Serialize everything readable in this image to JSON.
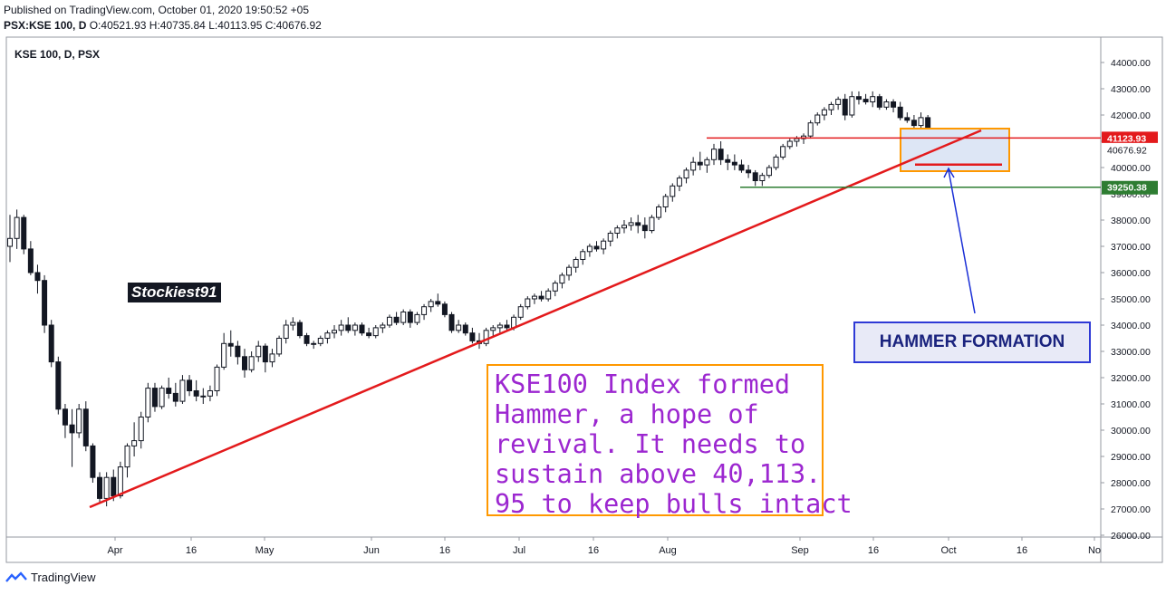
{
  "header": {
    "published": "Published on TradingView.com, October 01, 2020 19:50:52 +05",
    "symbol": "PSX:KSE 100, D",
    "o_label": "O:",
    "o_value": "40521.93",
    "h_label": "H:",
    "h_value": "40735.84",
    "l_label": "L:",
    "l_value": "40113.95",
    "c_label": "C:",
    "c_value": "40676.92"
  },
  "pane_title": "KSE 100, D, PSX",
  "footer_brand": "TradingView",
  "watermark": "Stockiest91",
  "hammer_label": "HAMMER FORMATION",
  "note_lines": [
    "KSE100 Index formed",
    "Hammer, a hope of",
    "revival. It needs to",
    "sustain above 40,113.",
    "95 to keep bulls intact"
  ],
  "colors": {
    "trendline": "#e31a1c",
    "resistance": "#e31a1c",
    "support": "#2e7d32",
    "box": "#ff9800",
    "arrow": "#1a2fd6",
    "last_price_tag": "#131722"
  },
  "chart_data": {
    "type": "candlestick",
    "ylim": [
      26000,
      44000
    ],
    "y_ticks": [
      "26000.00",
      "27000.00",
      "28000.00",
      "29000.00",
      "30000.00",
      "31000.00",
      "32000.00",
      "33000.00",
      "34000.00",
      "35000.00",
      "36000.00",
      "37000.00",
      "38000.00",
      "39000.00",
      "40000.00",
      "41000.00",
      "42000.00",
      "43000.00",
      "44000.00"
    ],
    "x_ticks": [
      "Apr",
      "16",
      "May",
      "Jun",
      "16",
      "Jul",
      "16",
      "Aug",
      "Sep",
      "16",
      "Oct",
      "16",
      "No"
    ],
    "price_tags": [
      {
        "label": "41123.93",
        "value": 41123.93,
        "color": "#e31a1c"
      },
      {
        "label": "40676.92",
        "value": 40676.92,
        "color": "#ffffff"
      },
      {
        "label": "39250.38",
        "value": 39250.38,
        "color": "#2e7d32"
      }
    ],
    "last_ohlc": {
      "open": 40521.93,
      "high": 40735.84,
      "low": 40113.95,
      "close": 40676.92
    },
    "candles": [
      [
        37000,
        38200,
        36400,
        37300
      ],
      [
        37300,
        38400,
        36900,
        38100
      ],
      [
        38100,
        38200,
        36700,
        36900
      ],
      [
        36900,
        37200,
        35900,
        36000
      ],
      [
        36000,
        36300,
        35200,
        35700
      ],
      [
        35700,
        35900,
        33700,
        34000
      ],
      [
        34000,
        34200,
        32400,
        32600
      ],
      [
        32600,
        32800,
        30600,
        30800
      ],
      [
        30800,
        31000,
        29700,
        30200
      ],
      [
        30200,
        30800,
        28600,
        29900
      ],
      [
        29900,
        31000,
        29700,
        30800
      ],
      [
        30800,
        31100,
        29200,
        29400
      ],
      [
        29400,
        29500,
        28000,
        28200
      ],
      [
        28200,
        28400,
        27200,
        27400
      ],
      [
        27400,
        28400,
        27100,
        28200
      ],
      [
        28200,
        28500,
        27300,
        27500
      ],
      [
        27500,
        28800,
        27400,
        28600
      ],
      [
        28600,
        29500,
        28200,
        29400
      ],
      [
        29400,
        30300,
        29000,
        29600
      ],
      [
        29600,
        30700,
        29300,
        30500
      ],
      [
        30500,
        31800,
        30300,
        31600
      ],
      [
        31600,
        31800,
        30700,
        30900
      ],
      [
        30900,
        31700,
        30800,
        31600
      ],
      [
        31600,
        32000,
        31200,
        31400
      ],
      [
        31400,
        31800,
        30900,
        31100
      ],
      [
        31100,
        32100,
        31000,
        31900
      ],
      [
        31900,
        32100,
        31300,
        31500
      ],
      [
        31500,
        31900,
        31100,
        31300
      ],
      [
        31300,
        31600,
        31000,
        31300
      ],
      [
        31300,
        31700,
        31100,
        31500
      ],
      [
        31500,
        32500,
        31300,
        32400
      ],
      [
        32400,
        33700,
        32300,
        33300
      ],
      [
        33300,
        33800,
        32800,
        33200
      ],
      [
        33200,
        33400,
        32500,
        32800
      ],
      [
        32800,
        33100,
        32000,
        32300
      ],
      [
        32300,
        33000,
        32200,
        32800
      ],
      [
        32800,
        33400,
        32600,
        33200
      ],
      [
        33200,
        33300,
        32200,
        32600
      ],
      [
        32600,
        33100,
        32400,
        32900
      ],
      [
        32900,
        33600,
        32800,
        33500
      ],
      [
        33500,
        34200,
        33300,
        34000
      ],
      [
        34000,
        34300,
        33800,
        34100
      ],
      [
        34100,
        34200,
        33500,
        33600
      ],
      [
        33600,
        33700,
        33200,
        33300
      ],
      [
        33300,
        33400,
        33100,
        33300
      ],
      [
        33300,
        33600,
        33200,
        33500
      ],
      [
        33500,
        33800,
        33300,
        33700
      ],
      [
        33700,
        34000,
        33500,
        33800
      ],
      [
        33800,
        34200,
        33600,
        34000
      ],
      [
        34000,
        34300,
        33700,
        33800
      ],
      [
        33800,
        34100,
        33600,
        34000
      ],
      [
        34000,
        34100,
        33600,
        33700
      ],
      [
        33700,
        33900,
        33500,
        33600
      ],
      [
        33600,
        34000,
        33500,
        33900
      ],
      [
        33900,
        34100,
        33700,
        34000
      ],
      [
        34000,
        34400,
        33900,
        34300
      ],
      [
        34300,
        34500,
        34000,
        34100
      ],
      [
        34100,
        34600,
        34000,
        34500
      ],
      [
        34500,
        34600,
        33900,
        34100
      ],
      [
        34100,
        34500,
        34000,
        34400
      ],
      [
        34400,
        34800,
        34200,
        34700
      ],
      [
        34700,
        35000,
        34500,
        34900
      ],
      [
        34900,
        35200,
        34700,
        34800
      ],
      [
        34800,
        34900,
        34300,
        34400
      ],
      [
        34400,
        34500,
        33700,
        33800
      ],
      [
        33800,
        34200,
        33700,
        34000
      ],
      [
        34000,
        34100,
        33600,
        33700
      ],
      [
        33700,
        33900,
        33300,
        33400
      ],
      [
        33400,
        33700,
        33100,
        33300
      ],
      [
        33300,
        33900,
        33200,
        33800
      ],
      [
        33800,
        34000,
        33600,
        33900
      ],
      [
        33900,
        34100,
        33700,
        34000
      ],
      [
        34000,
        34200,
        33800,
        33900
      ],
      [
        33900,
        34400,
        33800,
        34300
      ],
      [
        34300,
        34800,
        34200,
        34700
      ],
      [
        34700,
        35100,
        34600,
        35000
      ],
      [
        35000,
        35200,
        34800,
        35100
      ],
      [
        35100,
        35300,
        34900,
        35000
      ],
      [
        35000,
        35400,
        34900,
        35300
      ],
      [
        35300,
        35700,
        35100,
        35600
      ],
      [
        35600,
        36000,
        35400,
        35900
      ],
      [
        35900,
        36300,
        35700,
        36200
      ],
      [
        36200,
        36600,
        36000,
        36500
      ],
      [
        36500,
        36900,
        36300,
        36800
      ],
      [
        36800,
        37100,
        36600,
        37000
      ],
      [
        37000,
        37200,
        36800,
        36900
      ],
      [
        36900,
        37300,
        36700,
        37200
      ],
      [
        37200,
        37600,
        37000,
        37500
      ],
      [
        37500,
        37800,
        37300,
        37700
      ],
      [
        37700,
        38000,
        37500,
        37800
      ],
      [
        37800,
        38100,
        37600,
        37900
      ],
      [
        37900,
        38200,
        37500,
        37800
      ],
      [
        37800,
        38100,
        37300,
        37600
      ],
      [
        37600,
        38200,
        37500,
        38100
      ],
      [
        38100,
        38600,
        38000,
        38500
      ],
      [
        38500,
        39000,
        38300,
        38900
      ],
      [
        38900,
        39400,
        38700,
        39300
      ],
      [
        39300,
        39700,
        39100,
        39600
      ],
      [
        39600,
        40000,
        39400,
        39900
      ],
      [
        39900,
        40400,
        39700,
        40200
      ],
      [
        40200,
        40600,
        39900,
        40100
      ],
      [
        40100,
        40400,
        39800,
        40300
      ],
      [
        40300,
        40900,
        40100,
        40700
      ],
      [
        40700,
        41000,
        40100,
        40300
      ],
      [
        40300,
        40500,
        39900,
        40200
      ],
      [
        40200,
        40500,
        39900,
        40100
      ],
      [
        40100,
        40300,
        39800,
        39900
      ],
      [
        39900,
        40100,
        39600,
        39800
      ],
      [
        39800,
        39900,
        39300,
        39500
      ],
      [
        39500,
        39800,
        39300,
        39700
      ],
      [
        39700,
        40100,
        39600,
        40000
      ],
      [
        40000,
        40500,
        39900,
        40400
      ],
      [
        40400,
        40900,
        40300,
        40800
      ],
      [
        40800,
        41100,
        40700,
        41000
      ],
      [
        41000,
        41200,
        40800,
        41100
      ],
      [
        41100,
        41300,
        40900,
        41200
      ],
      [
        41200,
        41800,
        41100,
        41700
      ],
      [
        41700,
        42100,
        41600,
        42000
      ],
      [
        42000,
        42300,
        41800,
        42200
      ],
      [
        42200,
        42500,
        42000,
        42400
      ],
      [
        42400,
        42700,
        42200,
        42600
      ],
      [
        42600,
        42800,
        41800,
        42000
      ],
      [
        42000,
        42900,
        41900,
        42700
      ],
      [
        42700,
        42900,
        42400,
        42600
      ],
      [
        42600,
        42800,
        42400,
        42500
      ],
      [
        42500,
        42900,
        42300,
        42700
      ],
      [
        42700,
        42800,
        42200,
        42300
      ],
      [
        42300,
        42600,
        42200,
        42500
      ],
      [
        42500,
        42600,
        42100,
        42300
      ],
      [
        42300,
        42500,
        41800,
        41900
      ],
      [
        41900,
        42100,
        41700,
        41800
      ],
      [
        41800,
        42000,
        41500,
        41600
      ],
      [
        41600,
        42100,
        41500,
        41900
      ],
      [
        41900,
        42000,
        40700,
        40800
      ],
      [
        40800,
        41300,
        40200,
        41000
      ],
      [
        41000,
        41300,
        40300,
        40400
      ],
      [
        40521.93,
        40735.84,
        40113.95,
        40676.92
      ]
    ]
  }
}
